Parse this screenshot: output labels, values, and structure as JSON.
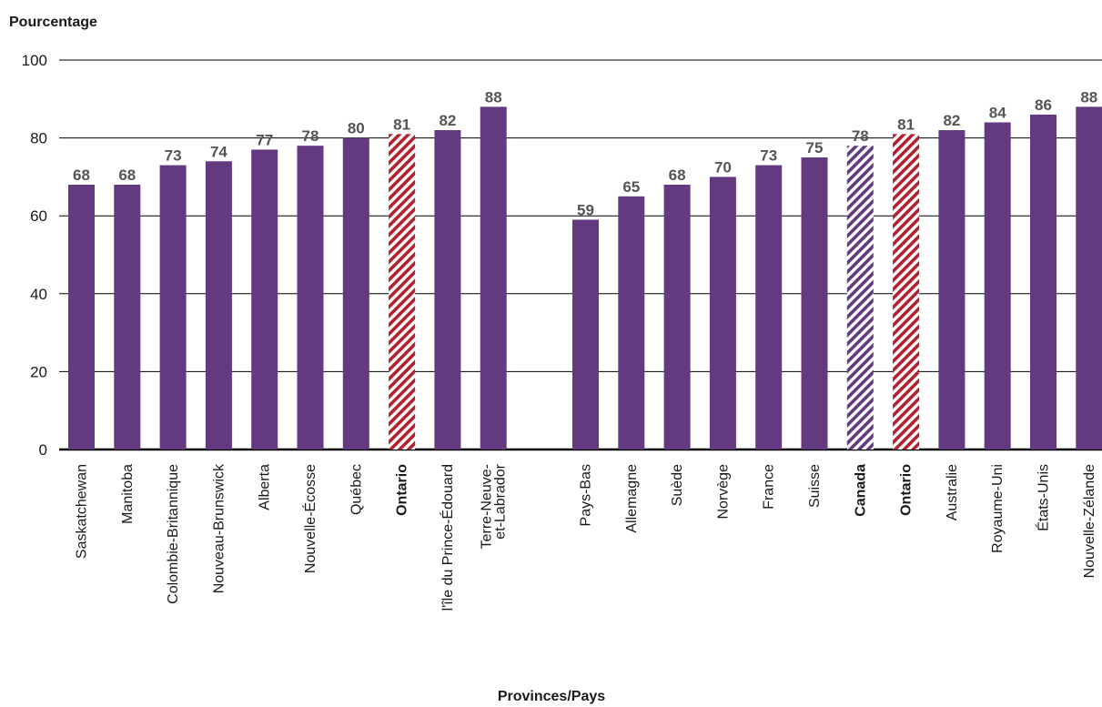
{
  "chart_data": {
    "type": "bar",
    "ylabel": "Pourcentage",
    "xlabel": "Provinces/Pays",
    "ylim": [
      0,
      100
    ],
    "yticks": [
      0,
      20,
      40,
      60,
      80,
      100
    ],
    "grid": true,
    "colors": {
      "bar": "#633a7f",
      "highlight_ontario": "#b5202e",
      "highlight_canada": "#633a7f",
      "grid": "#000000",
      "value_label": "#555555"
    },
    "groups": [
      {
        "bars": [
          {
            "label": [
              "Saskatchewan"
            ],
            "value": 68,
            "style": "solid",
            "bold": false
          },
          {
            "label": [
              "Manitoba"
            ],
            "value": 68,
            "style": "solid",
            "bold": false
          },
          {
            "label": [
              "Colombie-Britannique"
            ],
            "value": 73,
            "style": "solid",
            "bold": false
          },
          {
            "label": [
              "Nouveau-Brunswick"
            ],
            "value": 74,
            "style": "solid",
            "bold": false
          },
          {
            "label": [
              "Alberta"
            ],
            "value": 77,
            "style": "solid",
            "bold": false
          },
          {
            "label": [
              "Nouvelle-Écosse"
            ],
            "value": 78,
            "style": "solid",
            "bold": false
          },
          {
            "label": [
              "Québec"
            ],
            "value": 80,
            "style": "solid",
            "bold": false
          },
          {
            "label": [
              "Ontario"
            ],
            "value": 81,
            "style": "hatch-red",
            "bold": true
          },
          {
            "label": [
              "l'île du Prince-Édouard"
            ],
            "value": 82,
            "style": "solid",
            "bold": false
          },
          {
            "label": [
              "Terre-Neuve-",
              "et-Labrador"
            ],
            "value": 88,
            "style": "solid",
            "bold": false
          }
        ]
      },
      {
        "bars": [
          {
            "label": [
              "Pays-Bas"
            ],
            "value": 59,
            "style": "solid",
            "bold": false
          },
          {
            "label": [
              "Allemagne"
            ],
            "value": 65,
            "style": "solid",
            "bold": false
          },
          {
            "label": [
              "Suède"
            ],
            "value": 68,
            "style": "solid",
            "bold": false
          },
          {
            "label": [
              "Norvège"
            ],
            "value": 70,
            "style": "solid",
            "bold": false
          },
          {
            "label": [
              "France"
            ],
            "value": 73,
            "style": "solid",
            "bold": false
          },
          {
            "label": [
              "Suisse"
            ],
            "value": 75,
            "style": "solid",
            "bold": false
          },
          {
            "label": [
              "Canada"
            ],
            "value": 78,
            "style": "hatch-purple",
            "bold": true
          },
          {
            "label": [
              "Ontario"
            ],
            "value": 81,
            "style": "hatch-red",
            "bold": true
          },
          {
            "label": [
              "Australie"
            ],
            "value": 82,
            "style": "solid",
            "bold": false
          },
          {
            "label": [
              "Royaume-Uni"
            ],
            "value": 84,
            "style": "solid",
            "bold": false
          },
          {
            "label": [
              "États-Unis"
            ],
            "value": 86,
            "style": "solid",
            "bold": false
          },
          {
            "label": [
              "Nouvelle-Zélande"
            ],
            "value": 88,
            "style": "solid",
            "bold": false
          }
        ]
      }
    ]
  }
}
